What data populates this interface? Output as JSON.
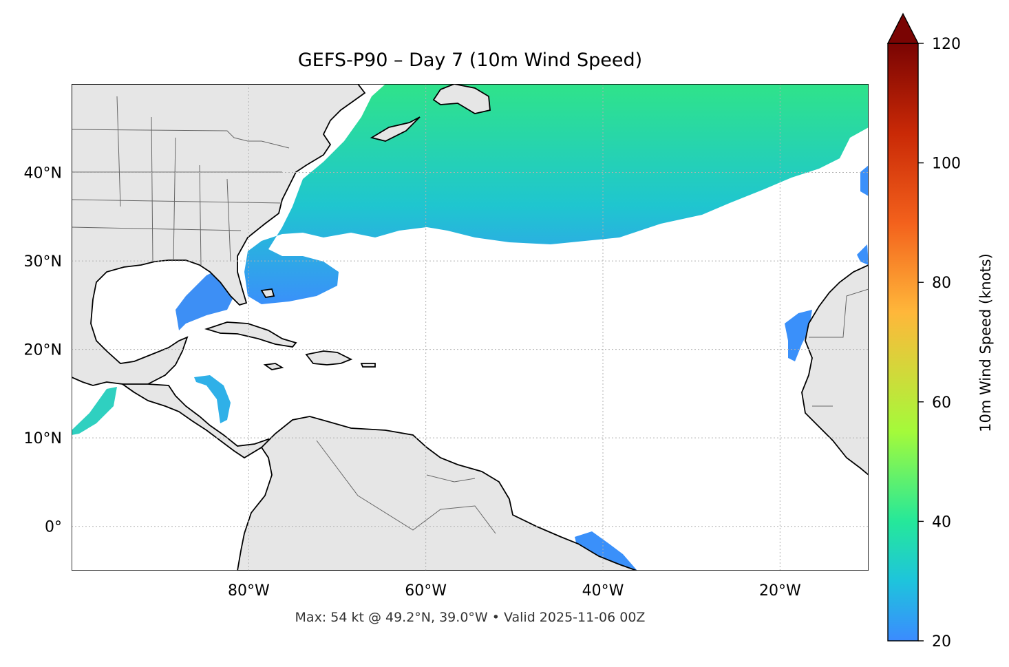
{
  "title": "GEFS-P90 – Day 7 (10m Wind Speed)",
  "footer": "Max: 54 kt @ 49.2°N, 39.0°W • Valid 2025-11-06 00Z",
  "map": {
    "lon_range": [
      -100,
      -10
    ],
    "lat_range": [
      -5,
      50
    ],
    "lon_ticks": [
      {
        "value": -80,
        "label": "80°W"
      },
      {
        "value": -60,
        "label": "60°W"
      },
      {
        "value": -40,
        "label": "40°W"
      },
      {
        "value": -20,
        "label": "20°W"
      }
    ],
    "lat_ticks": [
      {
        "value": 40,
        "label": "40°N"
      },
      {
        "value": 30,
        "label": "30°N"
      },
      {
        "value": 20,
        "label": "20°N"
      },
      {
        "value": 10,
        "label": "10°N"
      },
      {
        "value": 0,
        "label": "0°"
      }
    ],
    "land_color": "#e6e6e6",
    "gridlines": true
  },
  "colorbar": {
    "label": "10m Wind Speed (knots)",
    "min": 20,
    "max": 120,
    "ticks": [
      {
        "value": 20,
        "label": "20"
      },
      {
        "value": 40,
        "label": "40"
      },
      {
        "value": 60,
        "label": "60"
      },
      {
        "value": 80,
        "label": "80"
      },
      {
        "value": 100,
        "label": "100"
      },
      {
        "value": 120,
        "label": "120"
      }
    ],
    "colormap_stops": [
      "#3b8bff",
      "#1ec4dc",
      "#25e89a",
      "#a4fa3a",
      "#ffb73a",
      "#f3611c",
      "#c92906",
      "#7a0403"
    ],
    "extend": "max"
  }
}
